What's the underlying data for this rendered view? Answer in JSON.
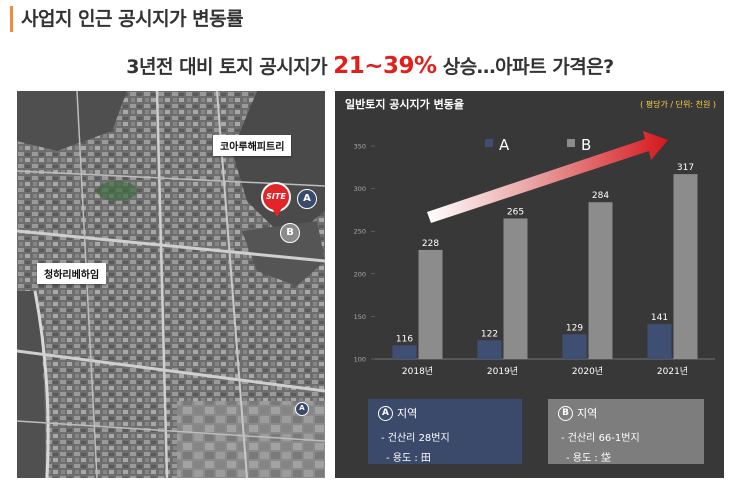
{
  "header": {
    "title": "사업지 인근 공시지가 변동률",
    "subtitle_pre": "3년전 대비 토지 공시지가 ",
    "subtitle_highlight": "21~39%",
    "subtitle_post": " 상승…아파트 가격은?"
  },
  "map": {
    "labels": {
      "korea_hapitree": "코아루해피트리",
      "cheongha_villa": "청하리베하임",
      "site": "SITE"
    },
    "markers": {
      "a": "A",
      "b": "B"
    }
  },
  "chart_data": {
    "type": "bar",
    "title": "일반토지 공시지가 변동율",
    "unit_label": "( 평당가 / 단위: 천원 )",
    "categories": [
      "2018년",
      "2019년",
      "2020년",
      "2021년"
    ],
    "series": [
      {
        "name": "A",
        "values": [
          116,
          122,
          129,
          141
        ],
        "color": "#3f4f73"
      },
      {
        "name": "B",
        "values": [
          228,
          265,
          284,
          317
        ],
        "color": "#8c8c8c"
      }
    ],
    "ylim": [
      100,
      350
    ],
    "yticks": [
      100,
      150,
      200,
      250,
      300,
      350
    ],
    "legend_position": "top",
    "trend_arrow": "up",
    "colors": {
      "panel_bg": "#383838",
      "arrow": "#d6171d"
    }
  },
  "legend_boxes": {
    "a": {
      "badge": "A",
      "heading": "지역",
      "line1": "- 건산리 28번지",
      "line2": "- 용도 : 田"
    },
    "b": {
      "badge": "B",
      "heading": "지역",
      "line1": "- 건산리 66-1번지",
      "line2": "- 용도 : 垈"
    }
  }
}
